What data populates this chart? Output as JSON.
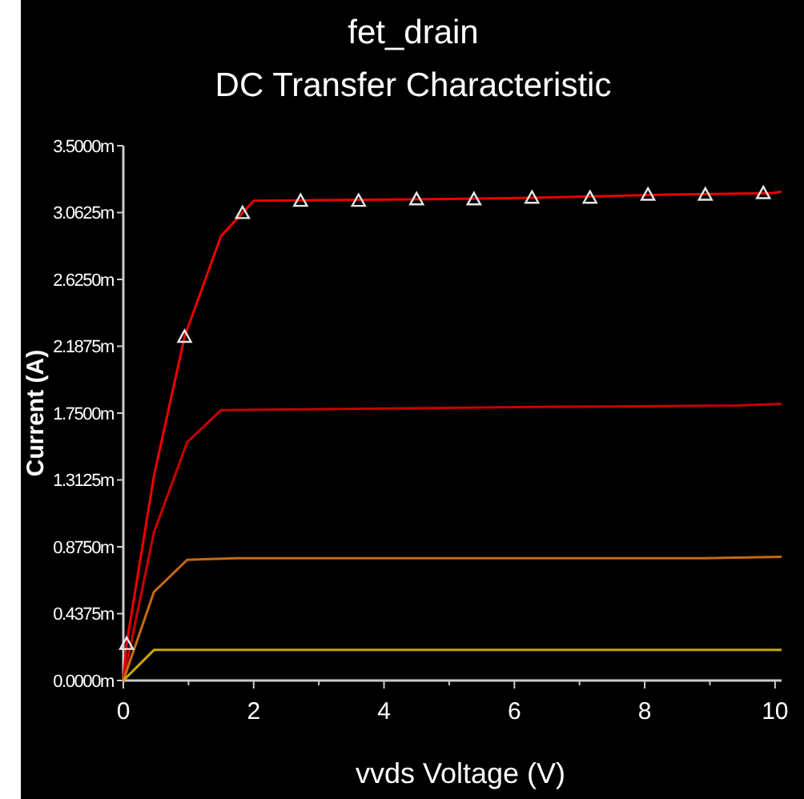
{
  "chart_data": {
    "type": "line",
    "title": "fet_drain",
    "subtitle": "DC Transfer Characteristic",
    "xlabel": "vvds Voltage (V)",
    "ylabel": "Current (A)",
    "xlim": [
      0,
      10.1
    ],
    "xticks": [
      0,
      {
        "value": 1,
        "label": null
      },
      2,
      {
        "value": 3,
        "label": null
      },
      4,
      {
        "value": 5,
        "label": null
      },
      6,
      {
        "value": 7,
        "label": null
      },
      8,
      {
        "value": 9,
        "label": null
      },
      10
    ],
    "ylim": [
      0,
      3.5
    ],
    "yticks": [
      {
        "value": 0,
        "label": "0.0000m"
      },
      {
        "value": 0.4375,
        "label": "0.4375m"
      },
      {
        "value": 0.875,
        "label": "0.8750m"
      },
      {
        "value": 1.3125,
        "label": "1.3125m"
      },
      {
        "value": 1.75,
        "label": "1.7500m"
      },
      {
        "value": 2.1875,
        "label": "2.1875m"
      },
      {
        "value": 2.625,
        "label": "2.6250m"
      },
      {
        "value": 3.0625,
        "label": "3.0625m"
      },
      {
        "value": 3.5,
        "label": "3.5000m"
      }
    ],
    "grid": false,
    "line_style": "solid",
    "series": [
      {
        "color": "#ee0000",
        "marker": "none",
        "x": [
          0,
          0.05,
          0.47,
          0.94,
          1.5,
          1.83,
          2.0,
          4.8,
          6.3,
          8.4,
          9.95,
          10.1
        ],
        "values": [
          0,
          0.24,
          1.34,
          2.25,
          2.91,
          3.06,
          3.14,
          3.15,
          3.16,
          3.18,
          3.19,
          3.2
        ]
      },
      {
        "color": "#c80000",
        "marker": "none",
        "x": [
          0,
          0.47,
          0.98,
          1.5,
          6.33,
          9.4,
          10.1
        ],
        "values": [
          0,
          0.97,
          1.56,
          1.77,
          1.79,
          1.8,
          1.81
        ]
      },
      {
        "color": "#c86a10",
        "marker": "none",
        "x": [
          0,
          0.47,
          0.98,
          1.75,
          8.9,
          10.1
        ],
        "values": [
          0,
          0.58,
          0.79,
          0.8,
          0.8,
          0.81
        ]
      },
      {
        "color": "#c8a800",
        "marker": "none",
        "x": [
          0,
          0.47,
          10.1
        ],
        "values": [
          0,
          0.2,
          0.2
        ]
      },
      {
        "type": "scatter",
        "color": "#e8e8e8",
        "marker": "triangle",
        "x": [
          0.05,
          0.94,
          1.83,
          2.72,
          3.61,
          4.5,
          5.38,
          6.27,
          7.16,
          8.05,
          8.93,
          9.82
        ],
        "values": [
          0.24,
          2.25,
          3.06,
          3.14,
          3.14,
          3.15,
          3.15,
          3.16,
          3.16,
          3.18,
          3.18,
          3.19
        ]
      }
    ]
  }
}
